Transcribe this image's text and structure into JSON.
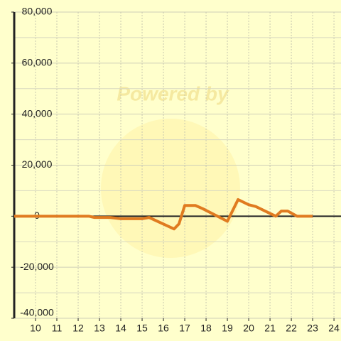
{
  "chart_data": {
    "type": "line",
    "watermark": "Powered by",
    "x": [
      9,
      12.5,
      12.77,
      13.5,
      14,
      15,
      15.33,
      16.5,
      16.73,
      17,
      17.5,
      17.83,
      19,
      19.5,
      20,
      20.33,
      21.27,
      21.53,
      21.83,
      22.27,
      23
    ],
    "series": [
      {
        "color": "#e07b20",
        "values": [
          0,
          0,
          -500,
          -500,
          -1000,
          -1000,
          -500,
          -5000,
          -3000,
          4200,
          4200,
          3000,
          -2000,
          6500,
          4500,
          3800,
          0,
          2000,
          2000,
          0,
          0
        ]
      }
    ],
    "xlim": [
      9,
      24.33
    ],
    "xticks": [
      10,
      11,
      12,
      13,
      14,
      15,
      16,
      17,
      18,
      19,
      20,
      21,
      22,
      23,
      24
    ],
    "ylim": [
      -40000,
      80000
    ],
    "yticks": [
      {
        "value": -40000,
        "label": "-40,000"
      },
      {
        "value": -20000,
        "label": "-20,000"
      },
      0,
      {
        "value": 20000,
        "label": "20,000"
      },
      {
        "value": 40000,
        "label": "40,000"
      },
      {
        "value": 60000,
        "label": "60,000"
      },
      {
        "value": 80000,
        "label": "80,000"
      }
    ],
    "grid": true
  }
}
